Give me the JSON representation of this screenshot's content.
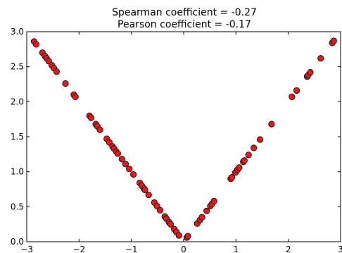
{
  "chart_data": {
    "type": "scatter",
    "title_lines": [
      "Spearman coefficient = -0.27",
      "Pearson coefficient = -0.17"
    ],
    "xlabel": "",
    "ylabel": "",
    "xlim": [
      -3,
      3
    ],
    "ylim": [
      0,
      3
    ],
    "xticks": [
      -3,
      -2,
      -1,
      0,
      1,
      2,
      3
    ],
    "xtick_labels": [
      "−3",
      "−2",
      "−1",
      "0",
      "1",
      "2",
      "3"
    ],
    "yticks": [
      0.0,
      0.5,
      1.0,
      1.5,
      2.0,
      2.5,
      3.0
    ],
    "ytick_labels": [
      "0.0",
      "0.5",
      "1.0",
      "1.5",
      "2.0",
      "2.5",
      "3.0"
    ],
    "grid": false,
    "legend": "none",
    "marker_color": "#e31a1c",
    "series": [
      {
        "x": [
          -2.86,
          -2.82,
          -2.7,
          -2.65,
          -2.62,
          -2.58,
          -2.52,
          -2.48,
          -2.43,
          -2.26,
          -2.1,
          -2.07,
          -1.8,
          -1.77,
          -1.68,
          -1.65,
          -1.6,
          -1.47,
          -1.42,
          -1.36,
          -1.33,
          -1.29,
          -1.26,
          -1.18,
          -1.11,
          -1.04,
          -0.96,
          -0.84,
          -0.8,
          -0.76,
          -0.74,
          -0.67,
          -0.56,
          -0.51,
          -0.45,
          -0.36,
          -0.33,
          -0.28,
          -0.25,
          -0.18,
          -0.14,
          -0.09,
          0.06,
          0.08,
          0.26,
          0.31,
          0.35,
          0.44,
          0.51,
          0.54,
          0.58,
          0.9,
          0.92,
          0.99,
          1.03,
          1.06,
          1.14,
          1.16,
          1.24,
          1.34,
          1.46,
          1.68,
          2.07,
          2.16,
          2.36,
          2.38,
          2.42,
          2.62,
          2.84,
          2.87
        ],
        "y": [
          2.86,
          2.82,
          2.7,
          2.65,
          2.62,
          2.58,
          2.52,
          2.48,
          2.43,
          2.26,
          2.1,
          2.07,
          1.8,
          1.77,
          1.68,
          1.65,
          1.6,
          1.47,
          1.42,
          1.36,
          1.33,
          1.29,
          1.26,
          1.18,
          1.11,
          1.04,
          0.96,
          0.84,
          0.8,
          0.76,
          0.74,
          0.67,
          0.56,
          0.51,
          0.45,
          0.36,
          0.33,
          0.28,
          0.25,
          0.18,
          0.14,
          0.09,
          0.06,
          0.08,
          0.26,
          0.31,
          0.35,
          0.44,
          0.51,
          0.54,
          0.58,
          0.9,
          0.92,
          0.99,
          1.03,
          1.06,
          1.14,
          1.16,
          1.24,
          1.34,
          1.46,
          1.68,
          2.07,
          2.16,
          2.36,
          2.38,
          2.42,
          2.62,
          2.84,
          2.87
        ]
      }
    ]
  }
}
